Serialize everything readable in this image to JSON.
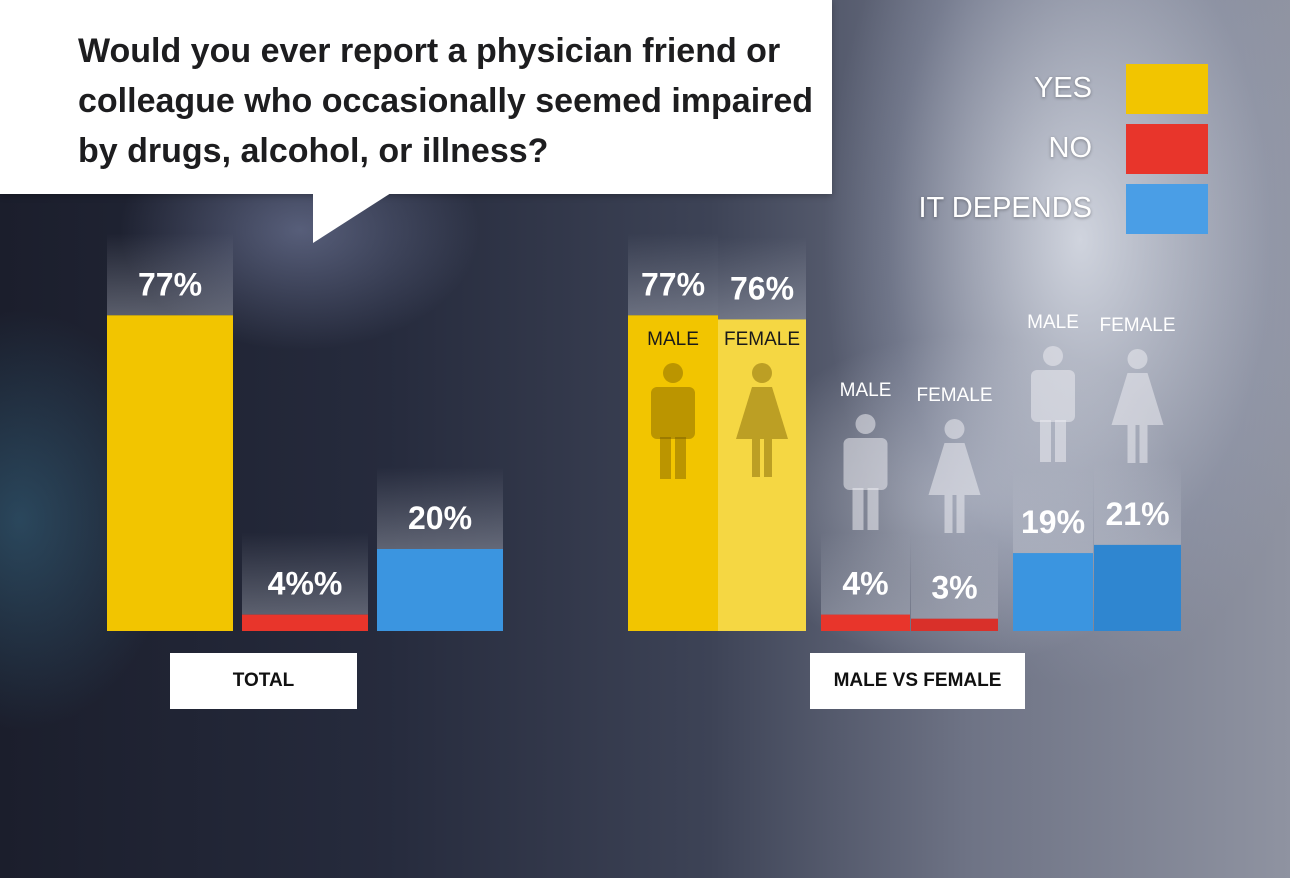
{
  "question": "Would you ever report a physician friend or colleague who occasionally seemed impaired by drugs, alcohol, or illness?",
  "legend": [
    {
      "label": "YES",
      "color": "#f2c500"
    },
    {
      "label": "NO",
      "color": "#e8352b"
    },
    {
      "label": "IT DEPENDS",
      "color": "#4a9ee6"
    }
  ],
  "chart_data": [
    {
      "type": "bar",
      "category_label": "TOTAL",
      "categories": [
        "YES",
        "NO",
        "IT DEPENDS"
      ],
      "values": [
        77,
        4,
        20
      ],
      "value_labels": [
        "77%",
        "4%%",
        "20%"
      ],
      "colors": [
        "#f2c500",
        "#e8352b",
        "#3b95e0"
      ],
      "ylim": [
        0,
        100
      ]
    },
    {
      "type": "bar",
      "category_label": "MALE VS FEMALE",
      "categories": [
        "MALE",
        "FEMALE",
        "MALE",
        "FEMALE",
        "MALE",
        "FEMALE"
      ],
      "groups": [
        "YES",
        "YES",
        "NO",
        "NO",
        "IT DEPENDS",
        "IT DEPENDS"
      ],
      "values": [
        77,
        76,
        4,
        3,
        19,
        21
      ],
      "value_labels": [
        "77%",
        "76%",
        "4%",
        "3%",
        "19%",
        "21%"
      ],
      "colors": [
        "#f2c500",
        "#f5d743",
        "#e8352b",
        "#d9302a",
        "#3b95e0",
        "#2f86d0"
      ],
      "ylim": [
        0,
        100
      ]
    }
  ]
}
